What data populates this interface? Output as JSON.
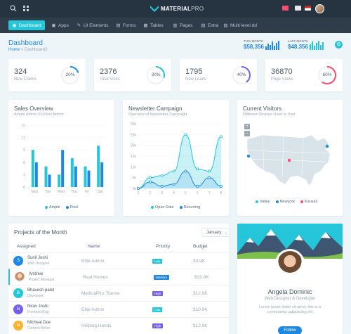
{
  "app": {
    "brand_main": "MATERIAL",
    "brand_accent": "PRO"
  },
  "nav": {
    "items": [
      {
        "label": "Dashboard",
        "icon": "dashboard-icon"
      },
      {
        "label": "Apps",
        "icon": "apps-icon"
      },
      {
        "label": "UI Elements",
        "icon": "ui-elements-icon"
      },
      {
        "label": "Forms",
        "icon": "forms-icon"
      },
      {
        "label": "Tables",
        "icon": "tables-icon"
      },
      {
        "label": "Pages",
        "icon": "pages-icon"
      },
      {
        "label": "Extra",
        "icon": "extra-icon"
      },
      {
        "label": "Multi level dd",
        "icon": "multi-level-icon"
      }
    ]
  },
  "header": {
    "title": "Dashboard",
    "breadcrumb_home": "Home",
    "breadcrumb_sep": ">",
    "breadcrumb_current": "Dashboard3",
    "this_month_label": "THIS MONTH",
    "this_month_value": "$58,356",
    "last_month_label": "LAST MONTH",
    "last_month_value": "$48,356"
  },
  "kpis": [
    {
      "value": "324",
      "label": "New Clients",
      "percent": "20%",
      "fraction": 0.2,
      "color": "#1e88e5"
    },
    {
      "value": "2376",
      "label": "Total Visits",
      "percent": "30%",
      "fraction": 0.3,
      "color": "#26c6da"
    },
    {
      "value": "1795",
      "label": "New Leads",
      "percent": "40%",
      "fraction": 0.4,
      "color": "#7460ee"
    },
    {
      "value": "36870",
      "label": "Page Views",
      "percent": "60%",
      "fraction": 0.6,
      "color": "#fc4b6c"
    }
  ],
  "sales": {
    "title": "Sales Overview",
    "subtitle": "Ample Admin Vs Pixel Admin",
    "legend": [
      "Ample",
      "Pixel"
    ],
    "chart_data": {
      "type": "bar",
      "categories": [
        "Mon",
        "Tue",
        "Wed",
        "Thu",
        "Fri",
        "Sat"
      ],
      "ylim": [
        0,
        15
      ],
      "yticks": [
        "0",
        "3",
        "6",
        "9",
        "12",
        "15"
      ],
      "series": [
        {
          "name": "Ample",
          "values": [
            9,
            5,
            3,
            7,
            5,
            10
          ],
          "color": "#26c6da"
        },
        {
          "name": "Pixel",
          "values": [
            6,
            3,
            9,
            5,
            4,
            6
          ],
          "color": "#1e88e5"
        }
      ]
    }
  },
  "newsletter": {
    "title": "Newsletter Campaign",
    "subtitle": "Overview of Newsletter Campaign",
    "legend": [
      "Open Rate",
      "Recurring"
    ],
    "chart_data": {
      "type": "area",
      "x": [
        1,
        2,
        3,
        4,
        5,
        6,
        7,
        8
      ],
      "ylim": [
        0,
        30
      ],
      "yticks": [
        "0k",
        "5k",
        "10k",
        "15k",
        "20k",
        "25k",
        "30k"
      ],
      "xticks": [
        "1",
        "2",
        "3",
        "4",
        "5",
        "6",
        "7",
        "8"
      ],
      "series": [
        {
          "name": "Open Rate",
          "values": [
            0,
            5,
            6,
            8,
            25,
            9,
            8,
            24
          ],
          "color": "#26c6da"
        },
        {
          "name": "Recurring",
          "values": [
            0,
            3,
            1,
            2,
            8,
            1,
            5,
            1
          ],
          "color": "#1e88e5"
        }
      ]
    }
  },
  "visitors": {
    "title": "Current Visitors",
    "subtitle": "Different Devices Used to Visit",
    "legend": [
      "Valley",
      "Newyork",
      "Kansas"
    ],
    "zoom_in": "+",
    "zoom_out": "−"
  },
  "projects": {
    "title": "Projects of the Month",
    "month": "January",
    "columns": [
      "Assigned",
      "Name",
      "Priority",
      "Budget"
    ],
    "rows": [
      {
        "initial": "S",
        "avatar_color": "#1e88e5",
        "name": "Sunil Joshi",
        "role": "Web Designer",
        "project": "Elite Admin",
        "priority": "Low",
        "priority_color": "#26c6da",
        "budget": "$3.9K"
      },
      {
        "initial": "",
        "avatar_color": "#d9a88a",
        "name": "Andrew",
        "role": "Project Manager",
        "project": "Real Homes",
        "priority": "Medium",
        "priority_color": "#1e88e5",
        "budget": "$23.9K"
      },
      {
        "initial": "B",
        "avatar_color": "#26c6da",
        "name": "Bhavesh patel",
        "role": "Developer",
        "project": "MedicalPro Theme",
        "priority": "High",
        "priority_color": "#7460ee",
        "budget": "$12.9K"
      },
      {
        "initial": "N",
        "avatar_color": "#7460ee",
        "name": "Nirav Joshi",
        "role": "Frontend Eng",
        "project": "Elite Admin",
        "priority": "Low",
        "priority_color": "#26c6da",
        "budget": "$10.9K"
      },
      {
        "initial": "M",
        "avatar_color": "#ffb22b",
        "name": "Micheal Doe",
        "role": "Content Writer",
        "project": "Helping Hands",
        "priority": "High",
        "priority_color": "#7460ee",
        "budget": "$12.9K"
      }
    ]
  },
  "profile": {
    "name": "Angela Dominic",
    "role": "Web Designer & Developer",
    "description": "Lorem ipsum dolor sit amet, this is a consectetur adipisicing elit",
    "follow_label": "Follow"
  }
}
